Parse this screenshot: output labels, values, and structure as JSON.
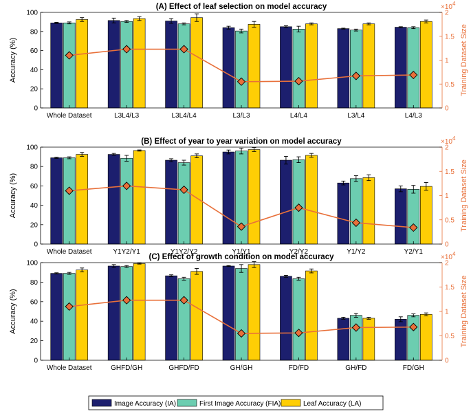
{
  "colors": {
    "ia": "#1c1f6e",
    "fia": "#6ccdb0",
    "la": "#fece05",
    "line": "#e8703a",
    "marker": "#e8703a",
    "axis_right": "#e8703a"
  },
  "legend": {
    "ia": "Image Accuracy (IA)",
    "fia": "First Image Accuracy (FIA)",
    "la": "Leaf Accuracy (LA)"
  },
  "chart_data": [
    {
      "type": "bar",
      "title": "(A) Effect of leaf selection on model accuracy",
      "ylabel": "Accuracy (%)",
      "y2label": "Training Dataset Size",
      "y2_multiplier": "×10",
      "y2_exponent": "4",
      "ylim": [
        0,
        100
      ],
      "y2lim": [
        0,
        2
      ],
      "yticks": [
        0,
        20,
        40,
        60,
        80,
        100
      ],
      "y2ticks": [
        0,
        0.5,
        1,
        1.5,
        2
      ],
      "y2ticklabels": [
        "0",
        "0.5",
        "1",
        "1.5",
        "2"
      ],
      "categories": [
        "Whole Dataset",
        "L3L4/L3",
        "L3L4/L4",
        "L3/L3",
        "L4/L4",
        "L3/L4",
        "L4/L3"
      ],
      "series": [
        {
          "name": "Image Accuracy (IA)",
          "key": "ia",
          "values": [
            89,
            91.5,
            91,
            84,
            85,
            83,
            84.5
          ],
          "errors": [
            0.6,
            2.5,
            2.5,
            1.5,
            1,
            0.5,
            0.5
          ]
        },
        {
          "name": "First Image Accuracy (FIA)",
          "key": "fia",
          "values": [
            89,
            90.5,
            88,
            80.5,
            82.5,
            81.5,
            84
          ],
          "errors": [
            1,
            1,
            1,
            2,
            3,
            1,
            1
          ]
        },
        {
          "name": "Leaf Accuracy (LA)",
          "key": "la",
          "values": [
            92.5,
            93.5,
            94.5,
            87.5,
            88,
            88,
            90.5
          ],
          "errors": [
            2,
            2,
            4,
            3,
            1,
            1,
            1.5
          ]
        }
      ],
      "line": {
        "name": "Training Dataset Size",
        "values": [
          1.1,
          1.23,
          1.23,
          0.55,
          0.56,
          0.67,
          0.69
        ]
      }
    },
    {
      "type": "bar",
      "title": "(B) Effect of year to year variation on model accuracy",
      "ylabel": "Accuracy (%)",
      "y2label": "Training Dataset Size",
      "y2_multiplier": "×10",
      "y2_exponent": "4",
      "ylim": [
        0,
        100
      ],
      "y2lim": [
        0,
        2
      ],
      "yticks": [
        0,
        20,
        40,
        60,
        80,
        100
      ],
      "y2ticks": [
        0,
        0.5,
        1,
        1.5,
        2
      ],
      "y2ticklabels": [
        "0",
        "0.5",
        "1",
        "1.5",
        "2"
      ],
      "categories": [
        "Whole Dataset",
        "Y1Y2/Y1",
        "Y1Y2/Y2",
        "Y1/Y1",
        "Y2/Y2",
        "Y1/Y2",
        "Y2/Y1"
      ],
      "series": [
        {
          "name": "Image Accuracy (IA)",
          "key": "ia",
          "values": [
            89,
            92.5,
            86.5,
            95,
            86.5,
            63,
            57
          ],
          "errors": [
            0.6,
            1,
            1.5,
            2,
            4,
            2,
            3
          ]
        },
        {
          "name": "First Image Accuracy (FIA)",
          "key": "fia",
          "values": [
            89,
            88.5,
            84,
            96,
            87,
            67.5,
            56.5
          ],
          "errors": [
            1,
            3,
            2.5,
            3,
            3,
            3,
            4
          ]
        },
        {
          "name": "Leaf Accuracy (LA)",
          "key": "la",
          "values": [
            92.5,
            96.5,
            91,
            97.5,
            91.5,
            68.5,
            59.5
          ],
          "errors": [
            2,
            0.6,
            2,
            2,
            2,
            3,
            4
          ]
        }
      ],
      "line": {
        "name": "Training Dataset Size",
        "values": [
          1.1,
          1.2,
          1.12,
          0.36,
          0.75,
          0.44,
          0.34
        ]
      }
    },
    {
      "type": "bar",
      "title": "(C) Effect of growth condition on model accuracy",
      "ylabel": "Accuracy (%)",
      "y2label": "Training Dataset Size",
      "y2_multiplier": "×10",
      "y2_exponent": "4",
      "ylim": [
        0,
        100
      ],
      "y2lim": [
        0,
        2
      ],
      "yticks": [
        0,
        20,
        40,
        60,
        80,
        100
      ],
      "y2ticks": [
        0,
        0.5,
        1,
        1.5,
        2
      ],
      "y2ticklabels": [
        "0",
        "0.5",
        "1",
        "1.5",
        "2"
      ],
      "categories": [
        "Whole Dataset",
        "GHFD/GH",
        "GHFD/FD",
        "GH/GH",
        "FD/FD",
        "GH/FD",
        "FD/GH"
      ],
      "series": [
        {
          "name": "Image Accuracy (IA)",
          "key": "ia",
          "values": [
            89,
            96.5,
            86.5,
            96.5,
            86,
            43,
            42
          ],
          "errors": [
            0.6,
            1.5,
            1,
            0.5,
            1,
            1,
            2.5
          ]
        },
        {
          "name": "First Image Accuracy (FIA)",
          "key": "fia",
          "values": [
            89,
            96,
            83.5,
            94,
            83.5,
            46,
            46
          ],
          "errors": [
            1,
            1,
            1.5,
            4,
            1.5,
            2,
            1.5
          ]
        },
        {
          "name": "Leaf Accuracy (LA)",
          "key": "la",
          "values": [
            92.5,
            99,
            91,
            98,
            91.5,
            43,
            47
          ],
          "errors": [
            2,
            0.5,
            3,
            3,
            2,
            1,
            1.5
          ]
        }
      ],
      "line": {
        "name": "Training Dataset Size",
        "values": [
          1.1,
          1.23,
          1.23,
          0.55,
          0.56,
          0.67,
          0.68
        ]
      }
    }
  ]
}
